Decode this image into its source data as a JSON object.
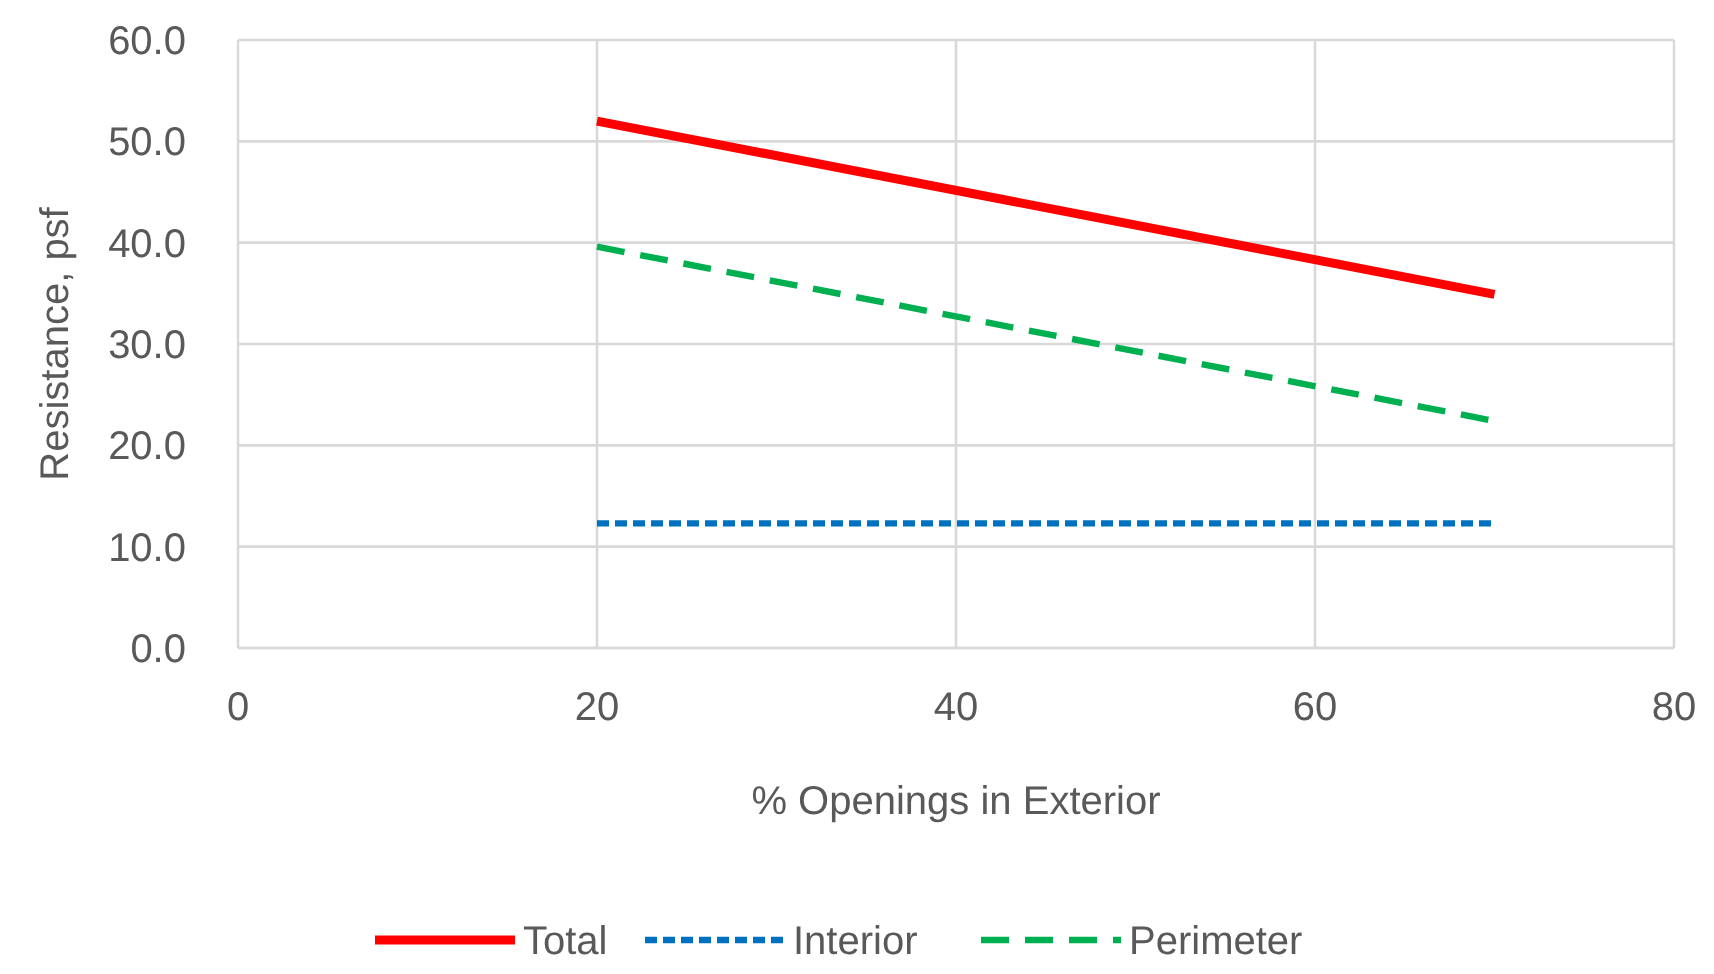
{
  "chart_data": {
    "type": "line",
    "xlabel": "% Openings in Exterior",
    "ylabel": "Resistance, psf",
    "x": [
      20,
      70
    ],
    "series": [
      {
        "name": "Total",
        "color": "#ff0000",
        "values": [
          52.0,
          34.9
        ],
        "line_style": "solid"
      },
      {
        "name": "Interior",
        "color": "#0070c0",
        "values": [
          12.3,
          12.3
        ],
        "line_style": "dotted"
      },
      {
        "name": "Perimeter",
        "color": "#00b050",
        "values": [
          39.6,
          22.4
        ],
        "line_style": "dashed"
      }
    ],
    "xlim": [
      0,
      80
    ],
    "xticks": [
      0,
      20,
      40,
      60,
      80
    ],
    "ylim": [
      0,
      60
    ],
    "yticks": [
      {
        "value": 0,
        "label": "0.0"
      },
      {
        "value": 10,
        "label": "10.0"
      },
      {
        "value": 20,
        "label": "20.0"
      },
      {
        "value": 30,
        "label": "30.0"
      },
      {
        "value": 40,
        "label": "40.0"
      },
      {
        "value": 50,
        "label": "50.0"
      },
      {
        "value": 60,
        "label": "60.0"
      }
    ],
    "grid": true,
    "legend": "bottom",
    "marker": "none"
  }
}
